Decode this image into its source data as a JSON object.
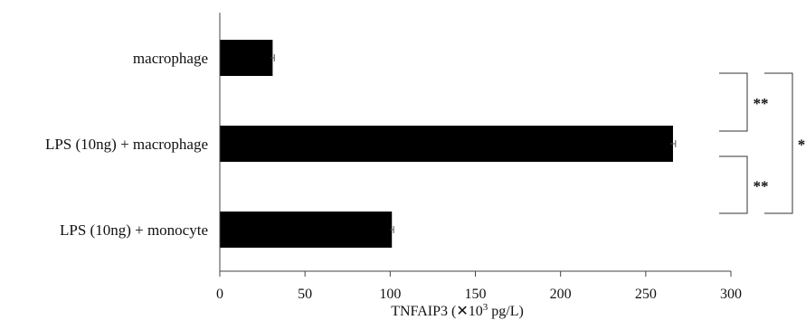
{
  "chart_data": {
    "type": "bar",
    "orientation": "horizontal",
    "title": "",
    "categories": [
      "macrophage",
      "LPS (10ng) + macrophage",
      "LPS (10ng) + monocyte"
    ],
    "values": [
      31,
      266,
      101
    ],
    "error": [
      1,
      1.5,
      1
    ],
    "xlabel_prefix": "TNFAIP3 (",
    "xlabel_symbol": "✕",
    "xlabel_base": "10",
    "xlabel_exp": "3",
    "xlabel_suffix": " pg/L)",
    "ylabel": "",
    "xlim": [
      0,
      300
    ],
    "xticks": [
      0,
      50,
      100,
      150,
      200,
      250,
      300
    ],
    "grid": false,
    "bar_color": "#000000",
    "significance": [
      {
        "pair": [
          0,
          1
        ],
        "label": "**",
        "level": 1
      },
      {
        "pair": [
          1,
          2
        ],
        "label": "**",
        "level": 1
      },
      {
        "pair": [
          0,
          2
        ],
        "label": "*",
        "level": 2
      }
    ]
  }
}
